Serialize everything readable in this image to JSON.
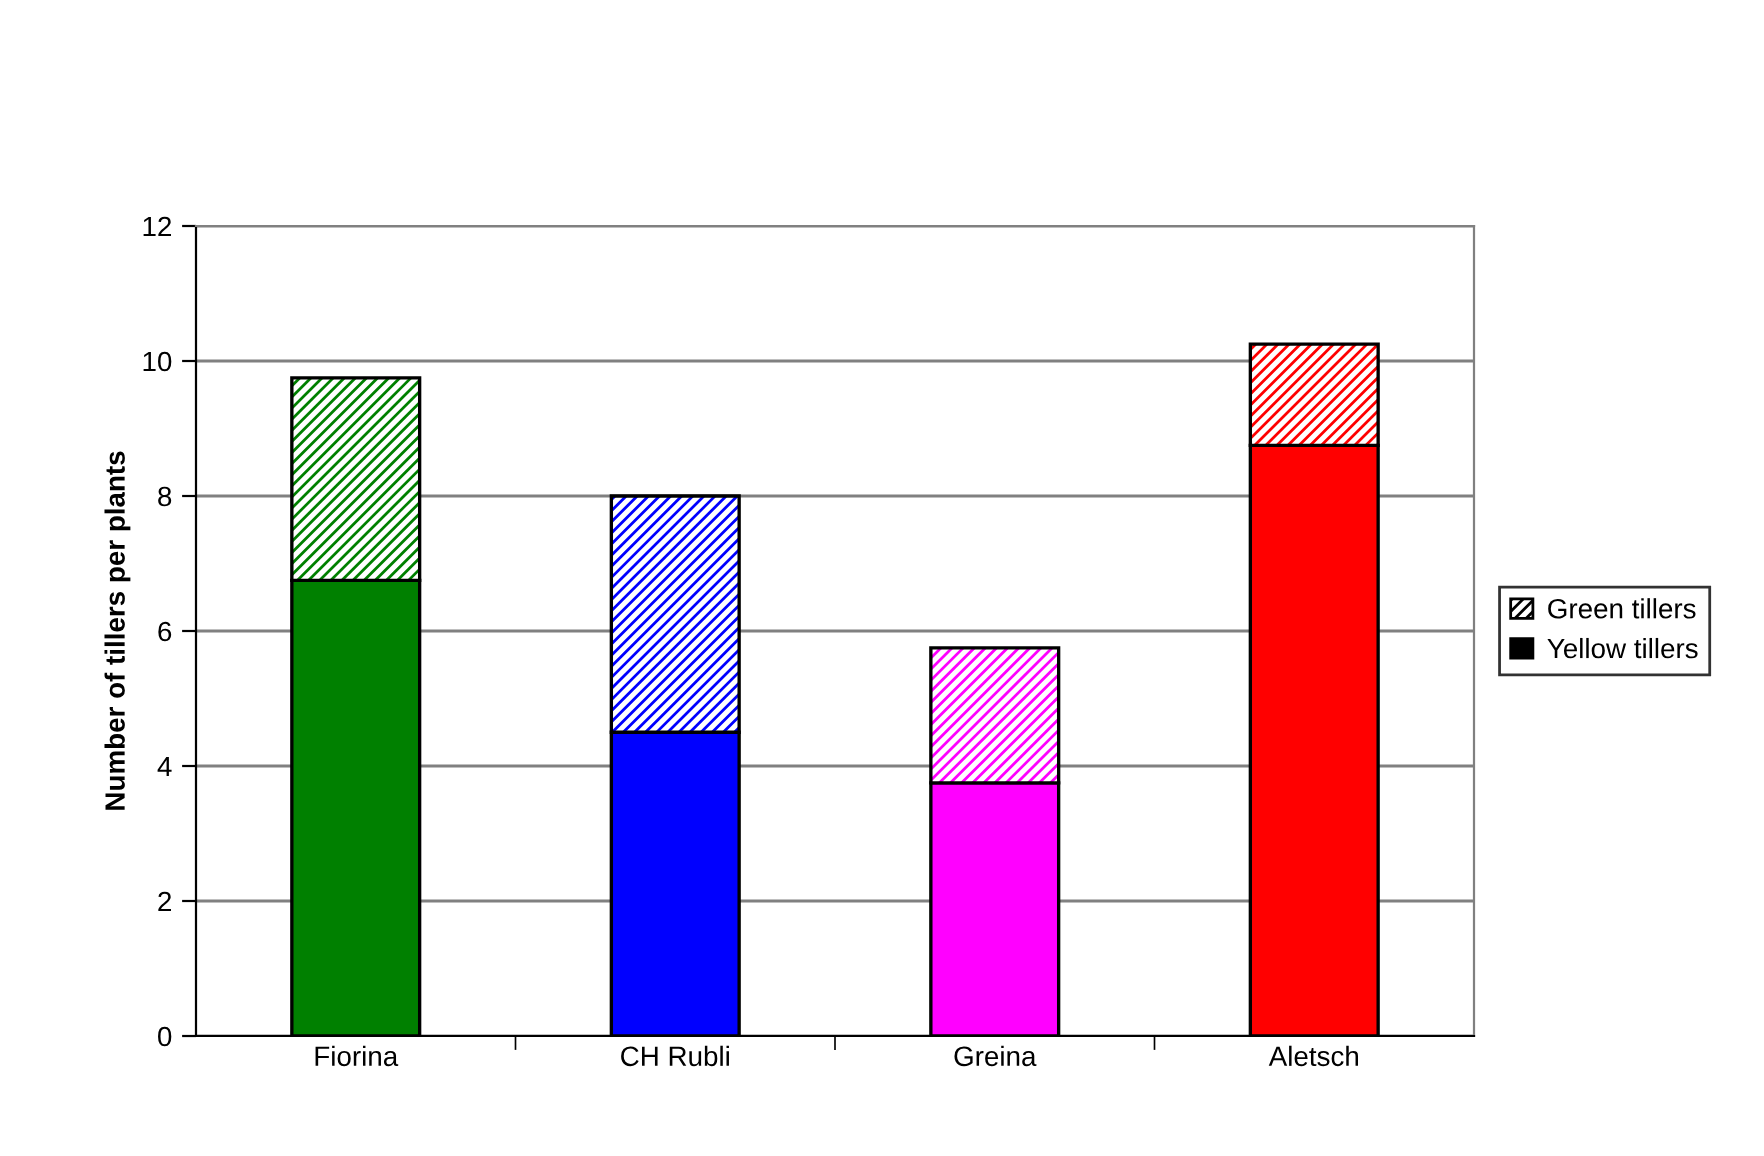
{
  "chart_data": {
    "type": "bar",
    "stacked": true,
    "ylabel": "Number of tillers per plants",
    "categories": [
      "Fiorina",
      "CH Rubli",
      "Greina",
      "Aletsch"
    ],
    "series": [
      {
        "name": "Yellow tillers",
        "color": "#000000",
        "colors": [
          "#008000",
          "#0000ff",
          "#ff00ff",
          "#ff0000"
        ],
        "values": [
          6.75,
          4.5,
          3.75,
          8.75
        ]
      },
      {
        "name": "Green tillers",
        "color": "#000000",
        "colors": [
          "#008000",
          "#0000ff",
          "#ff00ff",
          "#ff0000"
        ],
        "values": [
          3,
          3.5,
          2,
          1.5
        ]
      }
    ],
    "ylim": [
      0,
      12
    ],
    "yticks": [
      0,
      2,
      4,
      6,
      8,
      10,
      12
    ],
    "grid": "y",
    "legend": "right"
  }
}
